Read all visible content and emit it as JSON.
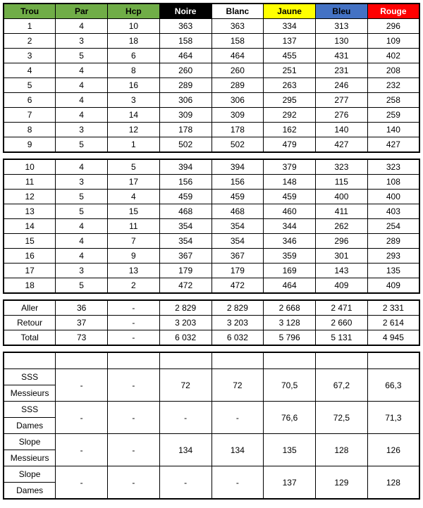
{
  "header": {
    "cols": [
      "Trou",
      "Par",
      "Hcp",
      "Noire",
      "Blanc",
      "Jaune",
      "Bleu",
      "Rouge"
    ],
    "bg": [
      "#70ad47",
      "#70ad47",
      "#70ad47",
      "#000000",
      "#ffffff",
      "#ffff00",
      "#4472c4",
      "#ff0000"
    ],
    "fg": [
      "#000000",
      "#000000",
      "#000000",
      "#ffffff",
      "#000000",
      "#000000",
      "#000000",
      "#ffffff"
    ]
  },
  "front9": [
    [
      "1",
      "4",
      "10",
      "363",
      "363",
      "334",
      "313",
      "296"
    ],
    [
      "2",
      "3",
      "18",
      "158",
      "158",
      "137",
      "130",
      "109"
    ],
    [
      "3",
      "5",
      "6",
      "464",
      "464",
      "455",
      "431",
      "402"
    ],
    [
      "4",
      "4",
      "8",
      "260",
      "260",
      "251",
      "231",
      "208"
    ],
    [
      "5",
      "4",
      "16",
      "289",
      "289",
      "263",
      "246",
      "232"
    ],
    [
      "6",
      "4",
      "3",
      "306",
      "306",
      "295",
      "277",
      "258"
    ],
    [
      "7",
      "4",
      "14",
      "309",
      "309",
      "292",
      "276",
      "259"
    ],
    [
      "8",
      "3",
      "12",
      "178",
      "178",
      "162",
      "140",
      "140"
    ],
    [
      "9",
      "5",
      "1",
      "502",
      "502",
      "479",
      "427",
      "427"
    ]
  ],
  "back9": [
    [
      "10",
      "4",
      "5",
      "394",
      "394",
      "379",
      "323",
      "323"
    ],
    [
      "11",
      "3",
      "17",
      "156",
      "156",
      "148",
      "115",
      "108"
    ],
    [
      "12",
      "5",
      "4",
      "459",
      "459",
      "459",
      "400",
      "400"
    ],
    [
      "13",
      "5",
      "15",
      "468",
      "468",
      "460",
      "411",
      "403"
    ],
    [
      "14",
      "4",
      "11",
      "354",
      "354",
      "344",
      "262",
      "254"
    ],
    [
      "15",
      "4",
      "7",
      "354",
      "354",
      "346",
      "296",
      "289"
    ],
    [
      "16",
      "4",
      "9",
      "367",
      "367",
      "359",
      "301",
      "293"
    ],
    [
      "17",
      "3",
      "13",
      "179",
      "179",
      "169",
      "143",
      "135"
    ],
    [
      "18",
      "5",
      "2",
      "472",
      "472",
      "464",
      "409",
      "409"
    ]
  ],
  "totals": [
    [
      "Aller",
      "36",
      "-",
      "2 829",
      "2 829",
      "2 668",
      "2 471",
      "2 331"
    ],
    [
      "Retour",
      "37",
      "-",
      "3 203",
      "3 203",
      "3 128",
      "2 660",
      "2 614"
    ],
    [
      "Total",
      "73",
      "-",
      "6 032",
      "6 032",
      "5 796",
      "5 131",
      "4 945"
    ]
  ],
  "ratings": [
    {
      "l1": "SSS",
      "l2": "Messieurs",
      "par": "-",
      "hcp": "-",
      "vals": [
        "72",
        "72",
        "70,5",
        "67,2",
        "66,3"
      ]
    },
    {
      "l1": "SSS",
      "l2": "Dames",
      "par": "-",
      "hcp": "-",
      "vals": [
        "-",
        "-",
        "76,6",
        "72,5",
        "71,3"
      ]
    },
    {
      "l1": "Slope",
      "l2": "Messieurs",
      "par": "-",
      "hcp": "-",
      "vals": [
        "134",
        "134",
        "135",
        "128",
        "126"
      ]
    },
    {
      "l1": "Slope",
      "l2": "Dames",
      "par": "-",
      "hcp": "-",
      "vals": [
        "-",
        "-",
        "137",
        "129",
        "128"
      ]
    }
  ]
}
